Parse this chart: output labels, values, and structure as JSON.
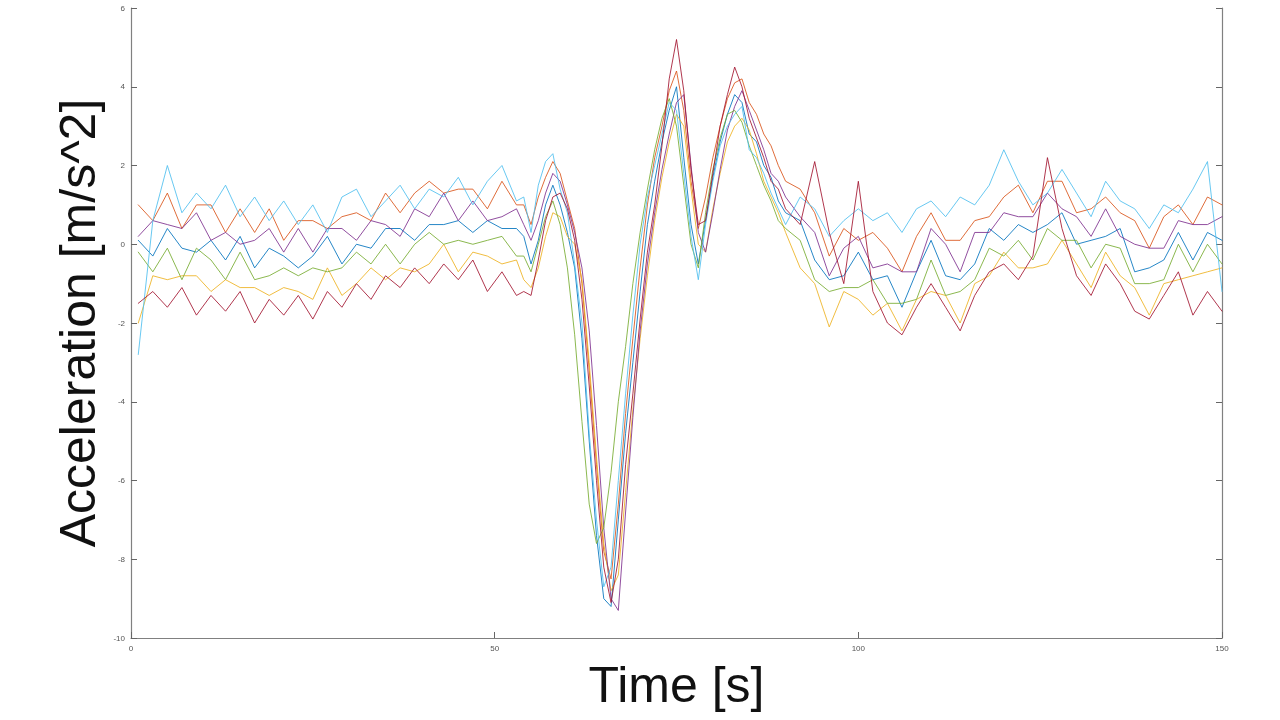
{
  "chart_data": {
    "type": "line",
    "xlabel": "Time [s]",
    "ylabel": "Acceleration [m/s^2]",
    "xlim": [
      0,
      150
    ],
    "xticks": [
      0,
      50,
      100,
      150
    ],
    "ylim": [
      -10,
      6
    ],
    "yticks": [
      -10,
      -8,
      -6,
      -4,
      -2,
      0,
      2,
      4,
      6
    ],
    "grid": false,
    "marker": "none",
    "line_style": "solid",
    "x": [
      1,
      3,
      5,
      7,
      9,
      11,
      13,
      15,
      17,
      19,
      21,
      23,
      25,
      27,
      29,
      31,
      33,
      35,
      37,
      39,
      41,
      43,
      45,
      47,
      49,
      51,
      53,
      54,
      55,
      56,
      57,
      58,
      59,
      60,
      61,
      62,
      63,
      64,
      65,
      66,
      67,
      68,
      69,
      70,
      71,
      72,
      73,
      74,
      75,
      76,
      77,
      78,
      79,
      80,
      81,
      82,
      83,
      84,
      85,
      86,
      87,
      88,
      89,
      90,
      92,
      94,
      96,
      98,
      100,
      102,
      104,
      106,
      108,
      110,
      112,
      114,
      116,
      118,
      120,
      122,
      124,
      126,
      128,
      130,
      132,
      134,
      136,
      138,
      140,
      142,
      144,
      146,
      148,
      150
    ],
    "series": [
      {
        "color": "#0072bd",
        "values": [
          0.1,
          -0.3,
          0.4,
          -0.1,
          -0.2,
          0.1,
          -0.4,
          0.2,
          -0.6,
          -0.1,
          -0.3,
          -0.6,
          -0.3,
          0.2,
          -0.5,
          0.0,
          -0.1,
          0.4,
          0.4,
          0.1,
          0.5,
          0.5,
          0.6,
          0.3,
          0.6,
          0.4,
          0.4,
          0.2,
          -0.5,
          0.1,
          1.0,
          1.5,
          1.0,
          0.3,
          -0.6,
          -2.4,
          -5.0,
          -7.4,
          -9.0,
          -9.2,
          -7.0,
          -4.8,
          -3.0,
          -1.2,
          0.5,
          1.6,
          2.6,
          3.4,
          4.0,
          2.2,
          0.5,
          -0.5,
          0.6,
          1.7,
          2.6,
          3.3,
          3.8,
          3.6,
          2.8,
          2.6,
          2.0,
          1.7,
          1.1,
          0.8,
          0.6,
          -0.4,
          -0.9,
          -0.8,
          -0.2,
          -0.9,
          -0.8,
          -1.6,
          -0.7,
          0.1,
          -0.8,
          -0.9,
          -0.5,
          0.4,
          0.1,
          0.5,
          0.3,
          0.5,
          0.8,
          0.0,
          0.1,
          0.2,
          0.4,
          -0.7,
          -0.6,
          -0.4,
          0.3,
          -0.4,
          0.3,
          0.1
        ]
      },
      {
        "color": "#d95319",
        "values": [
          1.0,
          0.6,
          1.3,
          0.4,
          1.0,
          1.0,
          0.3,
          0.9,
          0.3,
          0.9,
          0.1,
          0.6,
          0.6,
          0.4,
          0.7,
          0.8,
          0.6,
          1.3,
          0.8,
          1.3,
          1.6,
          1.3,
          1.4,
          1.4,
          0.9,
          1.6,
          1.0,
          1.0,
          0.5,
          1.2,
          1.7,
          2.1,
          1.8,
          1.1,
          0.4,
          -1.0,
          -3.2,
          -5.6,
          -7.8,
          -8.5,
          -6.6,
          -4.3,
          -2.4,
          -0.6,
          1.0,
          2.2,
          3.0,
          3.9,
          4.4,
          3.4,
          1.6,
          0.4,
          1.2,
          2.2,
          3.0,
          3.7,
          4.1,
          4.2,
          3.6,
          3.3,
          2.8,
          2.5,
          2.0,
          1.6,
          1.4,
          0.8,
          -0.3,
          0.4,
          0.1,
          0.3,
          -0.1,
          -0.7,
          0.2,
          0.8,
          0.1,
          0.1,
          0.6,
          0.7,
          1.2,
          1.5,
          0.8,
          1.6,
          1.6,
          0.8,
          0.9,
          1.2,
          0.8,
          0.6,
          -0.1,
          0.7,
          1.0,
          0.5,
          1.2,
          1.0
        ]
      },
      {
        "color": "#edb120",
        "values": [
          -2.0,
          -0.8,
          -0.9,
          -0.8,
          -0.8,
          -1.2,
          -0.9,
          -1.1,
          -1.1,
          -1.3,
          -1.1,
          -1.2,
          -1.4,
          -0.6,
          -1.3,
          -1.0,
          -0.6,
          -0.9,
          -0.6,
          -0.7,
          -0.5,
          0.0,
          -0.7,
          -0.2,
          -0.3,
          -0.5,
          -0.4,
          -0.9,
          -1.1,
          -0.6,
          0.2,
          0.8,
          0.7,
          0.2,
          0.0,
          -0.9,
          -3.0,
          -5.4,
          -7.6,
          -8.8,
          -8.4,
          -6.3,
          -4.2,
          -2.4,
          -0.8,
          0.6,
          1.7,
          2.6,
          3.3,
          3.0,
          1.4,
          0.0,
          -0.2,
          0.9,
          1.8,
          2.6,
          3.0,
          3.2,
          2.9,
          2.3,
          1.6,
          1.2,
          0.8,
          0.3,
          -0.6,
          -1.0,
          -2.1,
          -1.2,
          -1.4,
          -1.8,
          -1.5,
          -2.2,
          -1.4,
          -1.2,
          -1.3,
          -2.0,
          -1.0,
          -0.8,
          -0.2,
          -0.6,
          -0.6,
          -0.5,
          0.1,
          -0.5,
          -1.1,
          -0.2,
          -0.8,
          -1.1,
          -1.8,
          -1.0,
          -0.9,
          -0.8,
          -0.7,
          -0.6
        ]
      },
      {
        "color": "#7e2f8e",
        "values": [
          0.2,
          0.6,
          0.5,
          0.4,
          0.8,
          0.1,
          0.3,
          0.0,
          0.1,
          0.4,
          -0.2,
          0.4,
          -0.2,
          0.4,
          0.4,
          0.1,
          0.6,
          0.5,
          0.2,
          0.9,
          0.7,
          1.3,
          0.6,
          1.1,
          0.6,
          0.7,
          0.9,
          0.5,
          0.1,
          0.6,
          1.3,
          1.8,
          1.6,
          1.0,
          0.3,
          -0.6,
          -2.2,
          -4.6,
          -7.2,
          -9.0,
          -9.3,
          -6.8,
          -4.4,
          -2.2,
          -0.5,
          0.8,
          1.9,
          2.8,
          3.6,
          3.8,
          2.0,
          0.3,
          -0.2,
          0.8,
          1.9,
          2.9,
          3.5,
          3.9,
          3.4,
          2.9,
          2.4,
          1.8,
          1.6,
          1.2,
          0.7,
          0.3,
          -0.8,
          -0.1,
          0.2,
          -0.6,
          -0.5,
          -0.7,
          -0.7,
          0.4,
          0.0,
          -0.7,
          0.3,
          0.3,
          0.8,
          0.7,
          0.7,
          1.3,
          0.9,
          0.7,
          0.2,
          0.9,
          0.2,
          0.0,
          -0.1,
          -0.1,
          0.6,
          0.5,
          0.5,
          0.7
        ]
      },
      {
        "color": "#77ac30",
        "values": [
          -0.2,
          -0.7,
          -0.1,
          -0.9,
          -0.1,
          -0.4,
          -0.9,
          -0.2,
          -0.9,
          -0.8,
          -0.6,
          -0.8,
          -0.6,
          -0.7,
          -0.6,
          -0.2,
          -0.5,
          0.0,
          -0.5,
          0.0,
          0.3,
          0.0,
          0.1,
          0.0,
          0.1,
          0.2,
          -0.3,
          -0.3,
          -0.7,
          0.0,
          0.7,
          1.1,
          0.5,
          -0.6,
          -2.3,
          -4.5,
          -6.6,
          -7.6,
          -7.2,
          -5.8,
          -4.0,
          -2.6,
          -1.0,
          0.3,
          1.4,
          2.4,
          3.2,
          3.7,
          3.0,
          1.5,
          0.0,
          -0.6,
          0.8,
          1.9,
          2.7,
          3.3,
          3.4,
          3.1,
          2.5,
          2.0,
          1.5,
          1.1,
          0.6,
          0.4,
          0.1,
          -0.9,
          -1.2,
          -1.1,
          -1.1,
          -0.9,
          -1.5,
          -1.5,
          -1.4,
          -0.4,
          -1.3,
          -1.2,
          -0.9,
          -0.1,
          -0.3,
          0.1,
          -0.4,
          0.4,
          0.1,
          0.1,
          -0.6,
          0.0,
          -0.1,
          -1.0,
          -1.0,
          -0.9,
          0.0,
          -0.7,
          0.0,
          -0.5
        ]
      },
      {
        "color": "#4dbeee",
        "values": [
          -2.8,
          0.6,
          2.0,
          0.8,
          1.3,
          0.9,
          1.5,
          0.7,
          1.2,
          0.6,
          1.1,
          0.5,
          1.0,
          0.3,
          1.2,
          1.4,
          0.7,
          1.1,
          1.5,
          0.9,
          1.4,
          1.2,
          1.7,
          1.0,
          1.6,
          2.0,
          1.1,
          1.2,
          0.3,
          1.5,
          2.1,
          2.3,
          1.4,
          0.8,
          -0.5,
          -2.0,
          -4.8,
          -7.0,
          -8.7,
          -8.2,
          -6.0,
          -3.8,
          -1.8,
          0.0,
          1.2,
          2.0,
          2.8,
          3.6,
          3.4,
          1.8,
          0.2,
          -0.9,
          0.5,
          1.6,
          2.5,
          3.0,
          3.3,
          3.5,
          2.4,
          2.2,
          1.8,
          1.3,
          0.9,
          0.5,
          1.2,
          0.9,
          0.2,
          0.6,
          0.9,
          0.6,
          0.8,
          0.3,
          0.9,
          1.1,
          0.7,
          1.2,
          1.0,
          1.5,
          2.4,
          1.6,
          1.0,
          1.3,
          1.9,
          1.3,
          0.7,
          1.6,
          1.1,
          0.9,
          0.4,
          1.0,
          0.8,
          1.4,
          2.1,
          -1.2
        ]
      },
      {
        "color": "#a2142f",
        "values": [
          -1.5,
          -1.2,
          -1.6,
          -1.1,
          -1.8,
          -1.3,
          -1.7,
          -1.2,
          -2.0,
          -1.4,
          -1.8,
          -1.3,
          -1.9,
          -1.2,
          -1.6,
          -1.0,
          -1.4,
          -0.8,
          -1.1,
          -0.6,
          -1.0,
          -0.5,
          -0.9,
          -0.4,
          -1.2,
          -0.7,
          -1.3,
          -1.2,
          -1.3,
          -0.4,
          0.6,
          1.2,
          1.3,
          0.9,
          0.1,
          -1.4,
          -3.6,
          -6.0,
          -8.2,
          -9.1,
          -8.0,
          -5.6,
          -3.8,
          -1.9,
          -0.2,
          1.0,
          2.5,
          4.2,
          5.2,
          3.9,
          1.9,
          0.5,
          0.6,
          1.8,
          3.0,
          3.8,
          4.5,
          4.0,
          3.2,
          2.7,
          2.2,
          1.6,
          1.4,
          0.9,
          0.5,
          2.1,
          0.3,
          -1.0,
          1.6,
          -1.2,
          -2.0,
          -2.3,
          -1.6,
          -1.0,
          -1.6,
          -2.2,
          -1.3,
          -0.7,
          -0.5,
          -0.9,
          -0.3,
          2.2,
          0.4,
          -0.8,
          -1.3,
          -0.5,
          -1.0,
          -1.7,
          -1.9,
          -1.3,
          -0.7,
          -1.8,
          -1.2,
          -1.7
        ]
      }
    ]
  }
}
